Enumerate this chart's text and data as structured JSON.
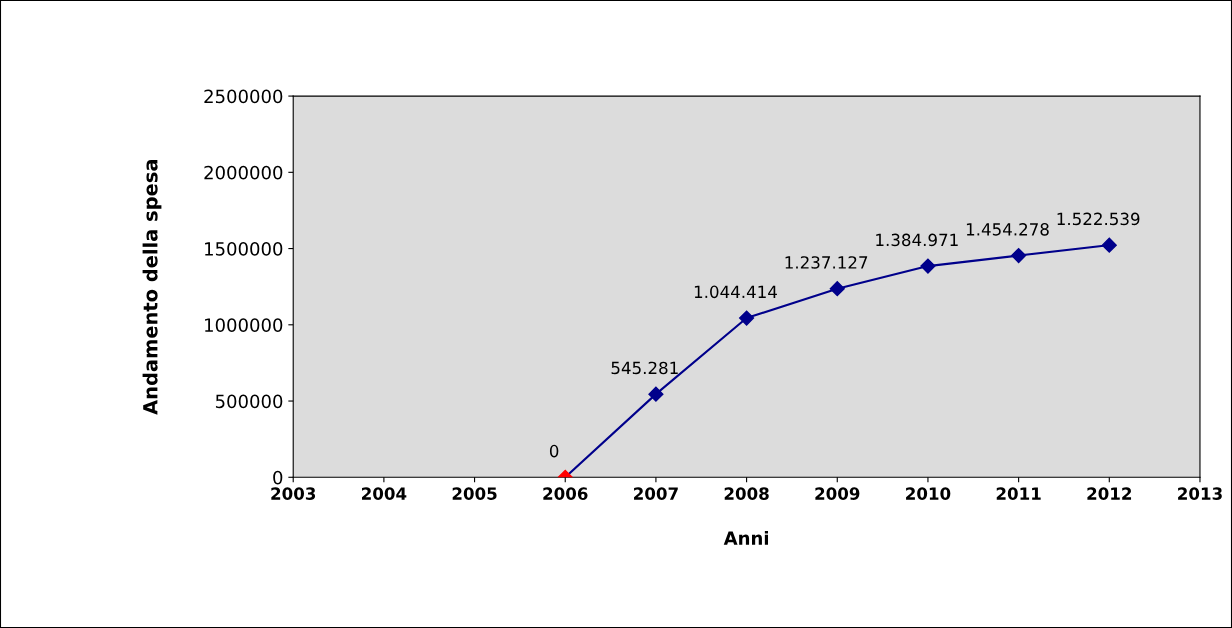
{
  "chart_data": {
    "type": "line",
    "xlabel": "Anni",
    "ylabel": "Andamento della spesa",
    "x": [
      2006,
      2007,
      2008,
      2009,
      2010,
      2011,
      2012
    ],
    "series": [
      {
        "color": "#00008b",
        "colors": [
          "#ff0000",
          "#00008b",
          "#00008b",
          "#00008b",
          "#00008b",
          "#00008b",
          "#00008b"
        ],
        "values": [
          0,
          545281,
          1044414,
          1237127,
          1384971,
          1454278,
          1522539
        ],
        "value_labels": [
          "0",
          "545.281",
          "1.044.414",
          "1.237.127",
          "1.384.971",
          "1.454.278",
          "1.522.539"
        ]
      }
    ],
    "xlim": [
      2003,
      2013
    ],
    "xticks": [
      2003,
      2004,
      2005,
      2006,
      2007,
      2008,
      2009,
      2010,
      2011,
      2012,
      2013
    ],
    "ylim": [
      0,
      2500000
    ],
    "yticks": [
      0,
      500000,
      1000000,
      1500000,
      2000000,
      2500000
    ],
    "marker": "diamond",
    "line_style": "solid",
    "grid": false,
    "legend": false
  }
}
